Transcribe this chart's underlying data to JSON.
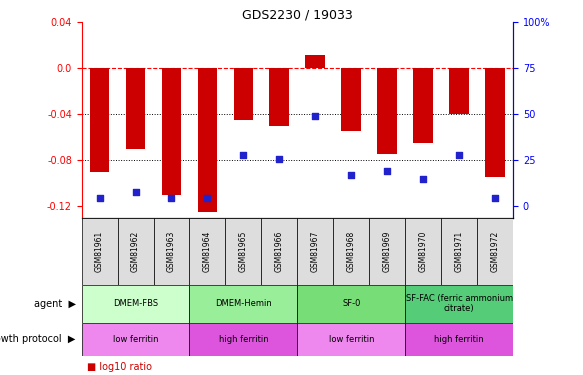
{
  "title": "GDS2230 / 19033",
  "samples": [
    "GSM81961",
    "GSM81962",
    "GSM81963",
    "GSM81964",
    "GSM81965",
    "GSM81966",
    "GSM81967",
    "GSM81968",
    "GSM81969",
    "GSM81970",
    "GSM81971",
    "GSM81972"
  ],
  "log10_ratio": [
    -0.09,
    -0.07,
    -0.11,
    -0.125,
    -0.045,
    -0.05,
    0.012,
    -0.055,
    -0.075,
    -0.065,
    -0.04,
    -0.095
  ],
  "percentile_rank": [
    10,
    13,
    10,
    10,
    32,
    30,
    52,
    22,
    24,
    20,
    32,
    10
  ],
  "ylim": [
    -0.13,
    0.04
  ],
  "yticks_left": [
    0.04,
    0.0,
    -0.04,
    -0.08,
    -0.12
  ],
  "yticks_right_labels": [
    "100%",
    "75",
    "50",
    "25",
    "0"
  ],
  "bar_color": "#cc0000",
  "dot_color": "#2222cc",
  "agent_groups": [
    {
      "label": "DMEM-FBS",
      "start": 0,
      "end": 3,
      "color": "#ccffcc"
    },
    {
      "label": "DMEM-Hemin",
      "start": 3,
      "end": 6,
      "color": "#99ee99"
    },
    {
      "label": "SF-0",
      "start": 6,
      "end": 9,
      "color": "#77dd77"
    },
    {
      "label": "SF-FAC (ferric ammonium\ncitrate)",
      "start": 9,
      "end": 12,
      "color": "#55cc77"
    }
  ],
  "growth_groups": [
    {
      "label": "low ferritin",
      "start": 0,
      "end": 3,
      "color": "#ee88ee"
    },
    {
      "label": "high ferritin",
      "start": 3,
      "end": 6,
      "color": "#dd55dd"
    },
    {
      "label": "low ferritin",
      "start": 6,
      "end": 9,
      "color": "#ee88ee"
    },
    {
      "label": "high ferritin",
      "start": 9,
      "end": 12,
      "color": "#dd55dd"
    }
  ]
}
